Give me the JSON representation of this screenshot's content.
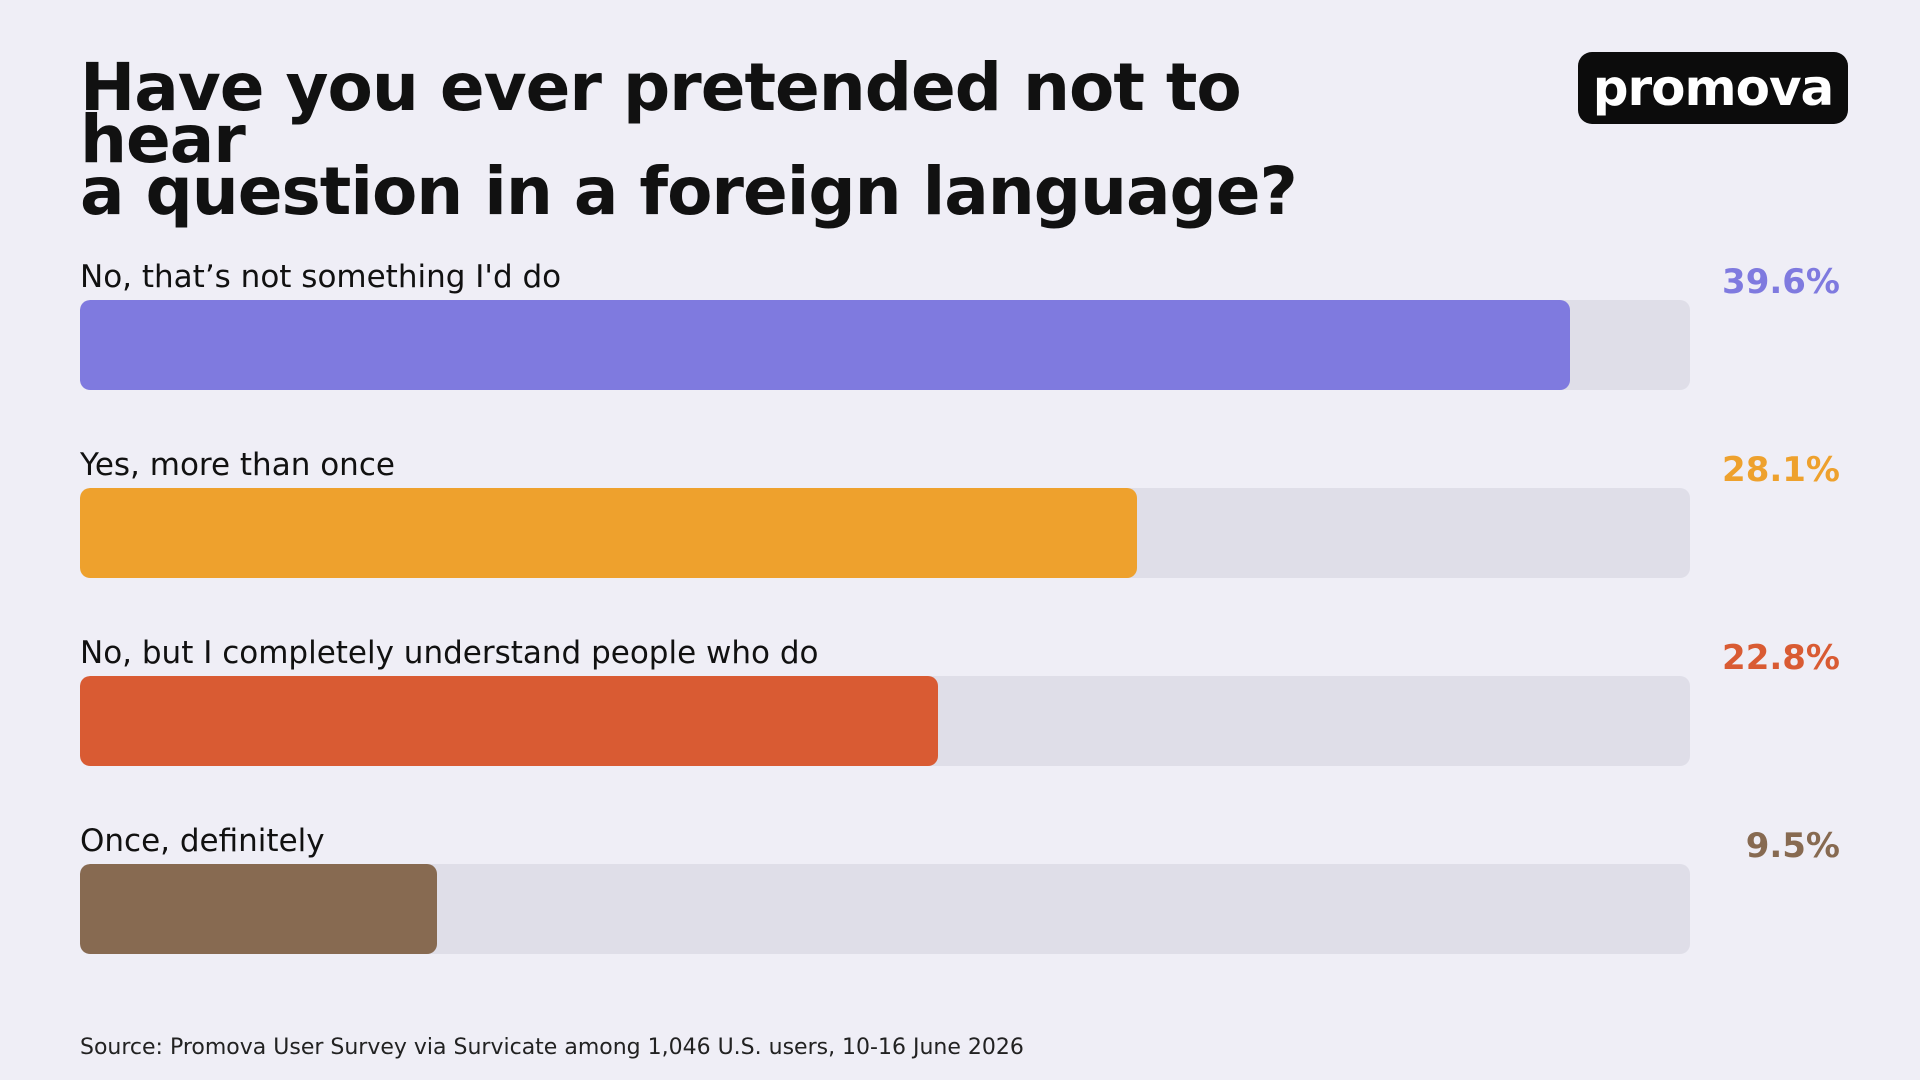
{
  "logo": {
    "text": "promova"
  },
  "chart_data": {
    "type": "bar",
    "orientation": "horizontal",
    "title": "Have you ever pretended not to hear a question in a foreign language?",
    "title_lines": [
      "Have you ever pretended not to hear",
      "a question in a foreign language?"
    ],
    "xlim": [
      0,
      42.8
    ],
    "categories": [
      "No, that’s not something I'd do",
      "Yes, more than once",
      "No, but I completely understand people who do",
      "Once, definitely"
    ],
    "values": [
      39.6,
      28.1,
      22.8,
      9.5
    ],
    "value_labels": [
      "39.6%",
      "28.1%",
      "22.8%",
      "9.5%"
    ],
    "colors": [
      "#7f7adf",
      "#eea12d",
      "#d95b33",
      "#876a51"
    ],
    "track_color": "#dfdee8",
    "source": "Source: Promova User Survey via Survicate among 1,046 U.S. users, 10-16 June 2026"
  }
}
